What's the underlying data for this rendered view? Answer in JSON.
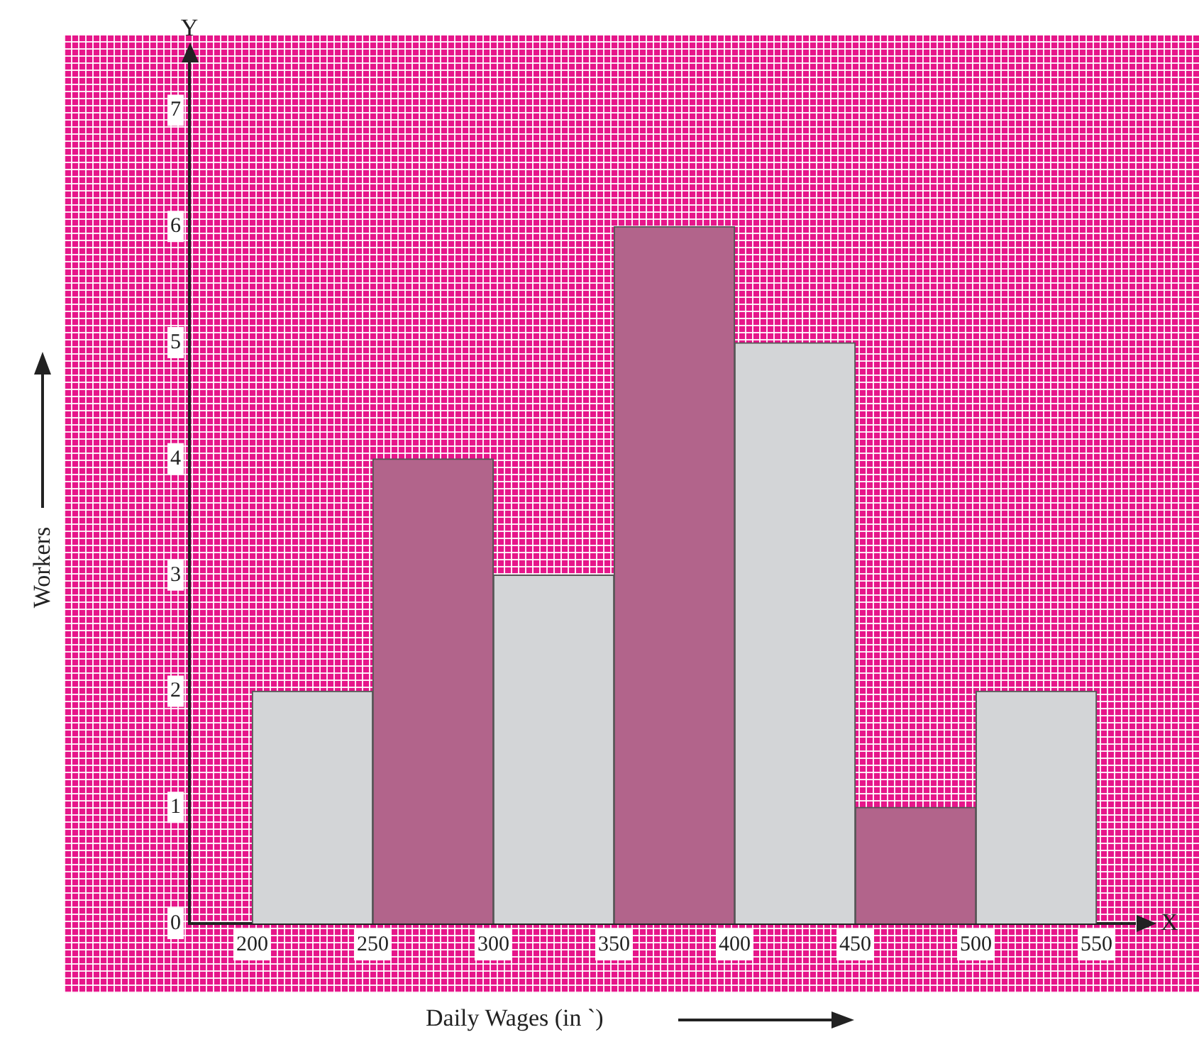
{
  "chart_data": {
    "type": "histogram",
    "xlabel": "Daily Wages (in `)",
    "ylabel": "Workers",
    "bins": [
      200,
      250,
      300,
      350,
      400,
      450,
      500,
      550
    ],
    "values": [
      2,
      4,
      3,
      6,
      5,
      1,
      2
    ],
    "colors": [
      "#d3d5d7",
      "#b2648b",
      "#d3d5d7",
      "#b2648b",
      "#d3d5d7",
      "#b2648b",
      "#d3d5d7"
    ],
    "xlim": [
      174,
      566
    ],
    "xticks": [
      200,
      250,
      300,
      350,
      400,
      450,
      500,
      550
    ],
    "ylim": [
      0,
      7.4
    ],
    "yticks": [
      0,
      1,
      2,
      3,
      4,
      5,
      6,
      7
    ],
    "grid": false,
    "legend": false,
    "annotations": [
      "X",
      "Y"
    ]
  }
}
